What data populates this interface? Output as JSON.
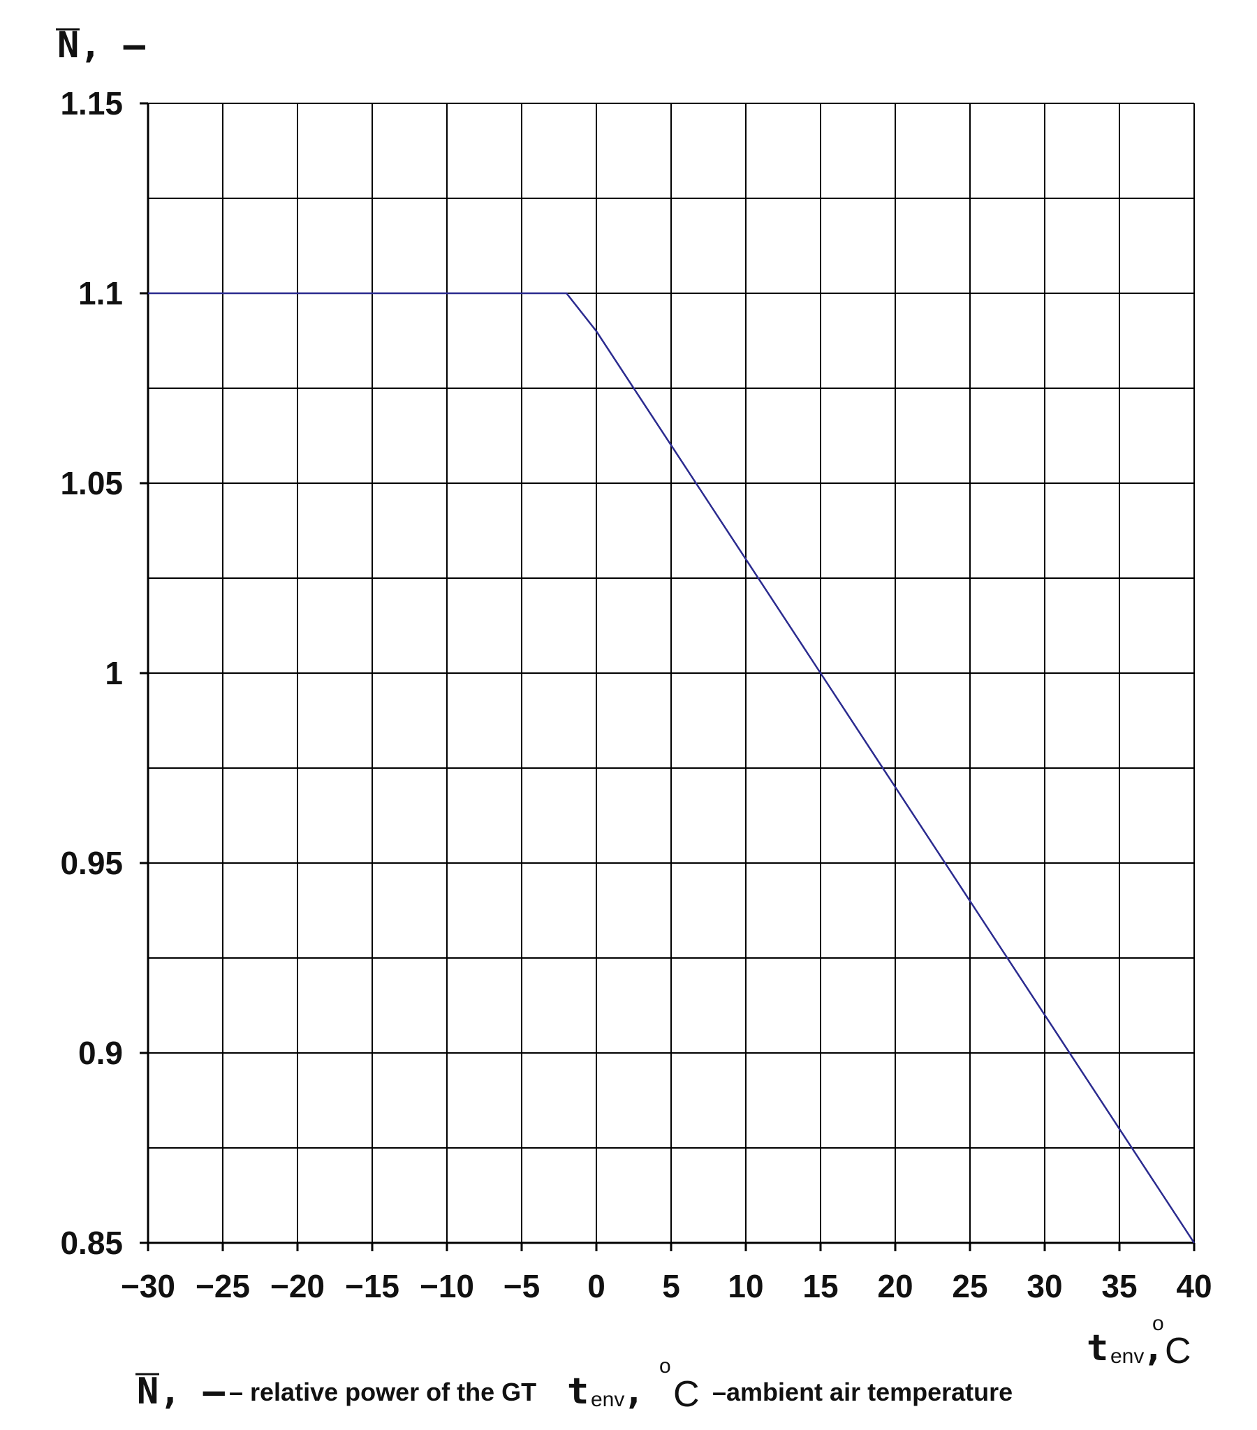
{
  "chart_data": {
    "type": "line",
    "ylabel": {
      "symbol": "N",
      "suffix": ", –"
    },
    "xlabel": {
      "symbol": "t",
      "subscript": "env",
      "comma": ",",
      "degree": "o",
      "unit": "C"
    },
    "xlim": [
      -30,
      40
    ],
    "ylim": [
      0.85,
      1.15
    ],
    "x_ticks": [
      "−30",
      "−25",
      "−20",
      "−15",
      "−10",
      "−5",
      "0",
      "5",
      "10",
      "15",
      "20",
      "25",
      "30",
      "35",
      "40"
    ],
    "y_ticks": [
      "0.85",
      "0.9",
      "0.95",
      "1",
      "1.05",
      "1.1",
      "1.15"
    ],
    "x_grid_step": 5,
    "y_grid_step": 0.025,
    "grid": true,
    "series": [
      {
        "color": "#2b2b8f",
        "points": [
          [
            -30,
            1.1
          ],
          [
            -2,
            1.1
          ],
          [
            0,
            1.09
          ],
          [
            5,
            1.06
          ],
          [
            10,
            1.03
          ],
          [
            15,
            1.0
          ],
          [
            20,
            0.97
          ],
          [
            25,
            0.94
          ],
          [
            30,
            0.91
          ],
          [
            35,
            0.88
          ],
          [
            40,
            0.85
          ]
        ]
      }
    ],
    "legend_note": {
      "n_symbol": "N",
      "n_suffix": ", –",
      "n_text": "– relative power of the GT",
      "t_symbol": "t",
      "t_subscript": "env",
      "t_comma": ",",
      "t_degree": "o",
      "t_unit": "C",
      "t_text": "–ambient air temperature"
    }
  }
}
